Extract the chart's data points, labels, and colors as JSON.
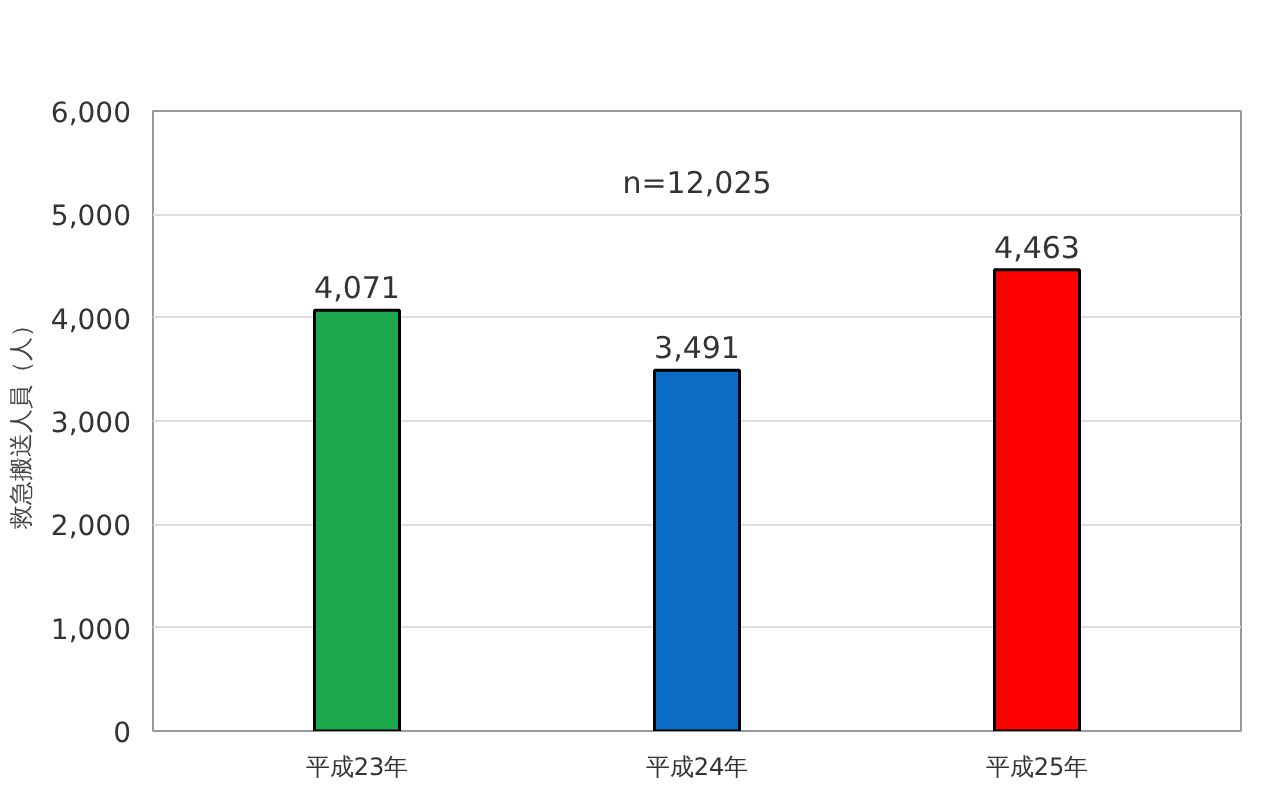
{
  "chart_data": {
    "type": "bar",
    "ylabel": "救急搬送人員（人）",
    "categories": [
      "平成23年",
      "平成24年",
      "平成25年"
    ],
    "values": [
      4071,
      3491,
      4463
    ],
    "colors": [
      "#1ca84c",
      "#0b6cc6",
      "#ff0000"
    ],
    "ylim": [
      0,
      6000
    ],
    "yticks": [
      {
        "value": 0,
        "label": "0"
      },
      {
        "value": 1000,
        "label": "1,000"
      },
      {
        "value": 2000,
        "label": "2,000"
      },
      {
        "value": 3000,
        "label": "3,000"
      },
      {
        "value": 4000,
        "label": "4,000"
      },
      {
        "value": 5000,
        "label": "5,000"
      },
      {
        "value": 6000,
        "label": "6,000"
      }
    ],
    "value_labels": [
      "4,071",
      "3,491",
      "4,463"
    ],
    "annotations": [
      "n=12,025"
    ],
    "grid": "y"
  }
}
